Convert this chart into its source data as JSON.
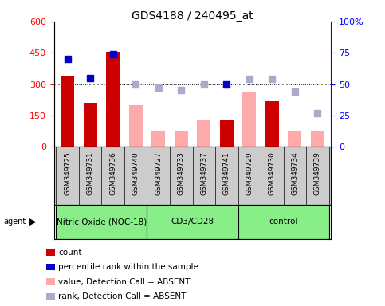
{
  "title": "GDS4188 / 240495_at",
  "samples": [
    "GSM349725",
    "GSM349731",
    "GSM349736",
    "GSM349740",
    "GSM349727",
    "GSM349733",
    "GSM349737",
    "GSM349741",
    "GSM349729",
    "GSM349730",
    "GSM349734",
    "GSM349739"
  ],
  "groups": {
    "Nitric Oxide (NOC-18)": [
      0,
      4
    ],
    "CD3/CD28": [
      4,
      8
    ],
    "control": [
      8,
      12
    ]
  },
  "count_bars": {
    "GSM349725": 340,
    "GSM349731": 210,
    "GSM349736": 455,
    "GSM349741": 130,
    "GSM349730": 220
  },
  "absent_value_bars": {
    "GSM349740": 200,
    "GSM349727": 75,
    "GSM349733": 75,
    "GSM349737": 130,
    "GSM349729": 265,
    "GSM349734": 75,
    "GSM349739": 75
  },
  "percentile_present": {
    "GSM349725": 70,
    "GSM349731": 55,
    "GSM349736": 74,
    "GSM349741": 50
  },
  "percentile_absent": {
    "GSM349740": 50,
    "GSM349727": 47,
    "GSM349733": 45,
    "GSM349737": 50,
    "GSM349729": 54,
    "GSM349730": 54,
    "GSM349734": 44,
    "GSM349739": 27
  },
  "ylim_left": [
    0,
    600
  ],
  "ylim_right": [
    0,
    100
  ],
  "yticks_left": [
    0,
    150,
    300,
    450,
    600
  ],
  "yticks_right": [
    0,
    25,
    50,
    75,
    100
  ],
  "ytick_labels_right": [
    "0",
    "25",
    "50",
    "75",
    "100%"
  ],
  "color_count": "#cc0000",
  "color_absent_bar": "#ffaaaa",
  "color_percentile_present": "#0000cc",
  "color_percentile_absent": "#aaaacc",
  "legend_entries": [
    "count",
    "percentile rank within the sample",
    "value, Detection Call = ABSENT",
    "rank, Detection Call = ABSENT"
  ],
  "group_bg_color": "#88ee88",
  "xlabels_bg_color": "#cccccc",
  "bar_width": 0.6,
  "title_fontsize": 10,
  "axis_fontsize": 8,
  "label_fontsize": 6.5,
  "legend_fontsize": 7.5,
  "group_fontsize": 7.5
}
